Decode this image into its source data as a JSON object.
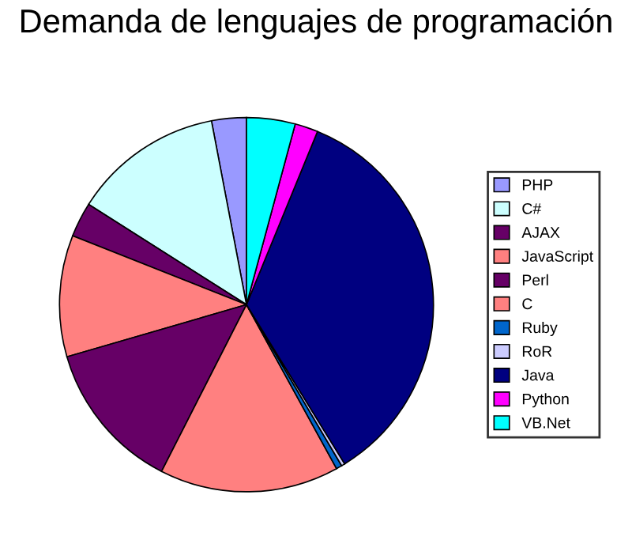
{
  "chart_data": {
    "type": "pie",
    "title": "Demanda de lenguajes de programación",
    "categories": [
      "PHP",
      "C#",
      "AJAX",
      "JavaScript",
      "Perl",
      "C",
      "Ruby",
      "RoR",
      "Java",
      "Python",
      "VB.Net"
    ],
    "values": [
      3,
      13,
      3,
      10.5,
      13,
      15.5,
      0.5,
      0.3,
      35,
      2,
      4.2
    ],
    "colors": [
      "#9999ff",
      "#ccffff",
      "#660066",
      "#ff8080",
      "#660066",
      "#ff8080",
      "#0066cc",
      "#ccccff",
      "#000080",
      "#ff00ff",
      "#00ffff"
    ],
    "legend": "right"
  }
}
